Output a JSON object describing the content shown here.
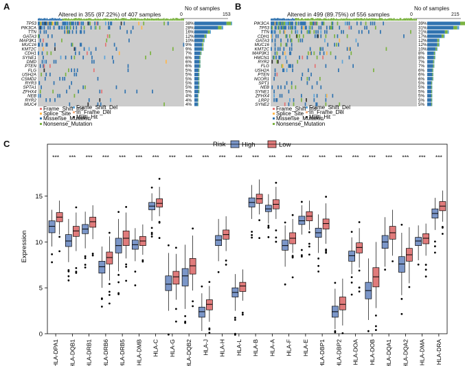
{
  "panels": {
    "a": {
      "letter": "A",
      "altered_text": "Altered in 355 (87.22%) of 407 samples",
      "samples_title": "No of samples",
      "axis_min": "0",
      "axis_max": "153",
      "genes": [
        "TP53",
        "PIK3CA",
        "TTN",
        "GATA3",
        "MAP3K1",
        "MUC16",
        "KMT2C",
        "CDH1",
        "SYNE1",
        "DMD",
        "PTEN",
        "FLG",
        "USH2A",
        "CSMD2",
        "RYR3",
        "SPTA1",
        "ZFHX4",
        "NEB",
        "RYR2",
        "MUC4"
      ],
      "percents": [
        "38%",
        "28%",
        "16%",
        "12%",
        "10%",
        "9%",
        "9%",
        "7%",
        "6%",
        "6%",
        "6%",
        "5%",
        "5%",
        "5%",
        "5%",
        "5%",
        "5%",
        "4%",
        "4%",
        "4%"
      ],
      "legend": [
        "Frame_Shift_Ins",
        "Frame_Shift_Del",
        "Splice_Site",
        "In_Frame_Del",
        "Missense_Mutation",
        "Multi_Hit",
        "Nonsense_Mutation"
      ]
    },
    "b": {
      "letter": "B",
      "altered_text": "Altered in 499 (89.75%) of 556 samples",
      "samples_title": "No of samples",
      "axis_min": "0",
      "axis_max": "215",
      "genes": [
        "PIK3CA",
        "TP53",
        "TTN",
        "CDH1",
        "GATA3",
        "MUC16",
        "KMT2C",
        "MAP3K1",
        "HMCN1",
        "RYR2",
        "FLG",
        "USH2A",
        "PTEN",
        "NCOR1",
        "SPT1",
        "NEB",
        "SYNE1",
        "ZFHX4",
        "LRP2",
        "SYNE2"
      ],
      "percents": [
        "39%",
        "31%",
        "21%",
        "17%",
        "12%",
        "12%",
        "10%",
        "8%",
        "8%",
        "7%",
        "7%",
        "6%",
        "6%",
        "6%",
        "5%",
        "5%",
        "5%",
        "5%",
        "5%",
        "5%"
      ],
      "legend": [
        "Frame_Shift_Ins",
        "Frame_Shift_Del",
        "Splice_Site",
        "In_Frame_Del",
        "Missense_Mutation",
        "Multi_Hit",
        "Nonsense_Mutation"
      ]
    },
    "c": {
      "letter": "C"
    }
  },
  "colors": {
    "missense": "#3274b0",
    "nonsense": "#7cb342",
    "frameshift_del": "#5da5da",
    "frameshift_ins": "#e57373",
    "splice": "#ffb74d",
    "inframe_del": "#f4b183",
    "multi_hit": "#333333",
    "background_cell": "#cccccc",
    "high": "#7b96c8",
    "low": "#e07b7b"
  },
  "chart_data": {
    "type": "boxplot",
    "ylabel": "Expression",
    "ylim": [
      0,
      19
    ],
    "yticks": [
      "0",
      "5",
      "10",
      "15"
    ],
    "legend_title": "Risk",
    "legend_placement": "top",
    "series": [
      {
        "name": "High",
        "color": "#7b96c8"
      },
      {
        "name": "Low",
        "color": "#e07b7b"
      }
    ],
    "significance": "***",
    "categories": [
      "HLA-DPA1",
      "HLA-DQB1",
      "HLA-DRB1",
      "HLA-DRB6",
      "HLA-DRB5",
      "HLA-DMB",
      "HLA-C",
      "HLA-G",
      "HLA-DQB2",
      "HLA-J",
      "HLA-H",
      "HLA-L",
      "HLA-B",
      "HLA-A",
      "HLA-F",
      "HLA-E",
      "HLA-DBP1",
      "HLA-DBP2",
      "HLA-DOA",
      "HLA-DOB",
      "HLA-DQA1",
      "HLA-DQA2",
      "HLA-DMA",
      "HLA-DRA"
    ],
    "high": [
      [
        9.5,
        11.0,
        11.7,
        12.3,
        13.5
      ],
      [
        7.8,
        9.5,
        10.1,
        10.8,
        12.5
      ],
      [
        9.3,
        10.9,
        11.4,
        11.9,
        13.3
      ],
      [
        5.0,
        6.6,
        7.3,
        7.9,
        9.5
      ],
      [
        6.8,
        8.8,
        9.6,
        10.4,
        12.5
      ],
      [
        7.9,
        9.2,
        9.7,
        10.2,
        11.5
      ],
      [
        12.3,
        13.5,
        13.9,
        14.3,
        15.3
      ],
      [
        2.5,
        4.7,
        5.4,
        6.3,
        8.8
      ],
      [
        2.7,
        5.2,
        6.3,
        7.1,
        9.7
      ],
      [
        0.3,
        1.8,
        2.4,
        2.9,
        4.4
      ],
      [
        7.9,
        9.6,
        10.2,
        10.7,
        12.5
      ],
      [
        2.5,
        4.0,
        4.5,
        5.0,
        6.5
      ],
      [
        12.5,
        13.8,
        14.3,
        14.8,
        16.2
      ],
      [
        12.0,
        13.3,
        13.6,
        14.0,
        15.2
      ],
      [
        7.3,
        9.1,
        9.6,
        10.2,
        11.8
      ],
      [
        10.8,
        11.9,
        12.3,
        12.8,
        14.0
      ],
      [
        8.8,
        10.5,
        11.0,
        11.5,
        13.0
      ],
      [
        0.5,
        1.8,
        2.4,
        3.0,
        4.9
      ],
      [
        6.5,
        7.9,
        8.5,
        9.0,
        10.5
      ],
      [
        1.5,
        3.8,
        4.7,
        5.6,
        8.2
      ],
      [
        7.3,
        9.3,
        10.0,
        10.7,
        12.7
      ],
      [
        4.2,
        6.7,
        7.6,
        8.4,
        11.0
      ],
      [
        8.0,
        9.6,
        10.1,
        10.5,
        11.8
      ],
      [
        11.3,
        12.6,
        13.1,
        13.6,
        14.8
      ]
    ],
    "low": [
      [
        10.8,
        12.2,
        12.7,
        13.2,
        14.5
      ],
      [
        9.0,
        10.6,
        11.2,
        11.7,
        13.2
      ],
      [
        10.3,
        11.6,
        12.2,
        12.7,
        14.0
      ],
      [
        5.8,
        7.6,
        8.3,
        8.9,
        10.6
      ],
      [
        8.2,
        9.6,
        10.4,
        11.2,
        13.2
      ],
      [
        8.6,
        9.6,
        10.1,
        10.6,
        11.9
      ],
      [
        12.8,
        13.8,
        14.2,
        14.7,
        16.0
      ],
      [
        3.7,
        5.4,
        6.2,
        6.8,
        8.7
      ],
      [
        4.7,
        6.5,
        7.4,
        8.2,
        10.7
      ],
      [
        1.3,
        2.6,
        3.2,
        3.7,
        5.2
      ],
      [
        9.0,
        10.3,
        10.8,
        11.3,
        12.8
      ],
      [
        3.6,
        4.6,
        5.2,
        5.6,
        7.0
      ],
      [
        13.0,
        14.2,
        14.7,
        15.2,
        16.8
      ],
      [
        12.5,
        13.6,
        14.1,
        14.6,
        16.0
      ],
      [
        8.8,
        9.8,
        10.4,
        11.0,
        12.5
      ],
      [
        11.3,
        12.3,
        12.8,
        13.3,
        14.5
      ],
      [
        9.8,
        11.4,
        12.0,
        12.5,
        14.2
      ],
      [
        0.9,
        2.6,
        3.2,
        4.0,
        6.0
      ],
      [
        7.2,
        8.8,
        9.4,
        9.9,
        11.5
      ],
      [
        2.8,
        5.1,
        6.2,
        7.2,
        10.0
      ],
      [
        8.5,
        10.3,
        11.0,
        11.7,
        13.5
      ],
      [
        5.5,
        7.9,
        8.6,
        9.3,
        11.6
      ],
      [
        8.5,
        9.8,
        10.4,
        10.9,
        12.0
      ],
      [
        12.2,
        13.4,
        13.9,
        14.4,
        15.6
      ]
    ]
  }
}
